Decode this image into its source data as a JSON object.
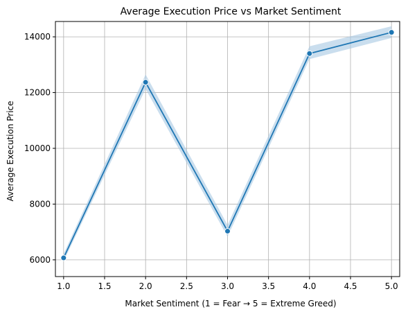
{
  "chart_data": {
    "type": "line",
    "title": "Average Execution Price vs Market Sentiment",
    "xlabel": "Market Sentiment (1 = Fear → 5 = Extreme Greed)",
    "ylabel": "Average Execution Price",
    "xlim": [
      0.9,
      5.1
    ],
    "ylim": [
      5400,
      14550
    ],
    "x_ticks": [
      "1.0",
      "1.5",
      "2.0",
      "2.5",
      "3.0",
      "3.5",
      "4.0",
      "4.5",
      "5.0"
    ],
    "y_ticks": [
      "6000",
      "8000",
      "10000",
      "12000",
      "14000"
    ],
    "grid": true,
    "x": [
      1,
      2,
      3,
      4,
      5
    ],
    "series": [
      {
        "values": [
          6070,
          12370,
          7030,
          13400,
          14160
        ],
        "ci_lower": [
          5950,
          12130,
          6830,
          13200,
          13960
        ],
        "ci_upper": [
          6210,
          12650,
          7250,
          13660,
          14380
        ]
      }
    ],
    "colors": {
      "line": "#1f77b4",
      "band": "#a6c8e3",
      "grid": "#b0b0b0",
      "axes": "#000000"
    }
  }
}
